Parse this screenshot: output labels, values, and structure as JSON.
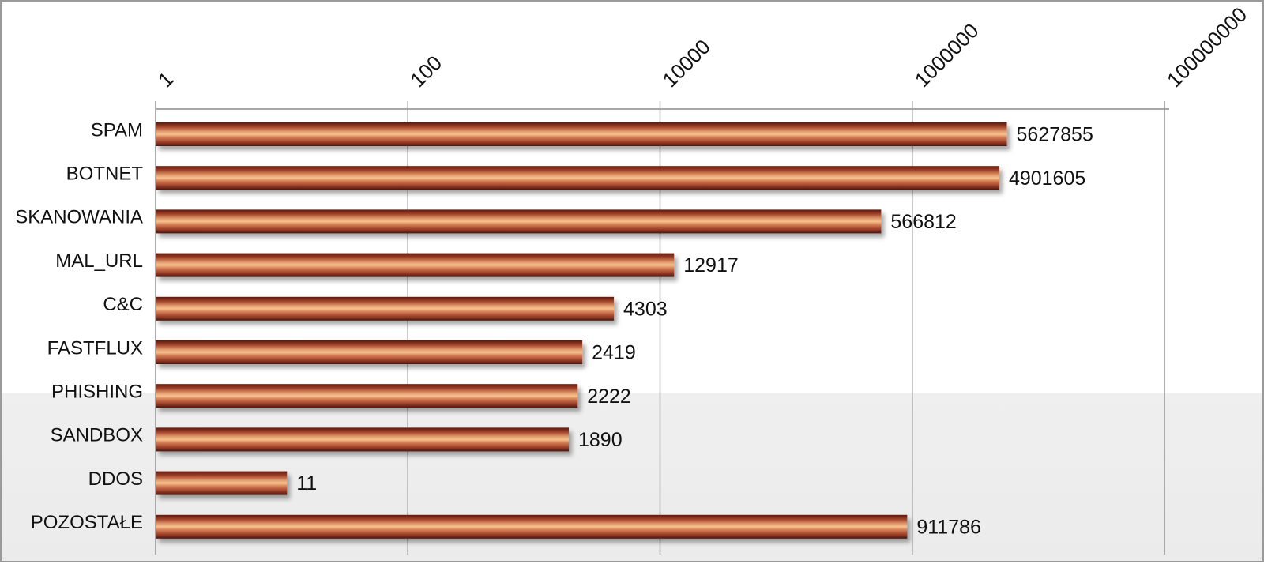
{
  "chart_data": {
    "type": "bar",
    "orientation": "horizontal",
    "scale": "log",
    "xlim": [
      1,
      100000000
    ],
    "x_ticks": [
      "1",
      "100",
      "10000",
      "1000000",
      "100000000"
    ],
    "x_tick_values": [
      1,
      100,
      10000,
      1000000,
      100000000
    ],
    "x_axis_position": "top",
    "grid": true,
    "categories": [
      "SPAM",
      "BOTNET",
      "SKANOWANIA",
      "MAL_URL",
      "C&C",
      "FASTFLUX",
      "PHISHING",
      "SANDBOX",
      "DDOS",
      "POZOSTAŁE"
    ],
    "values": [
      5627855,
      4901605,
      566812,
      12917,
      4303,
      2419,
      2222,
      1890,
      11,
      911786
    ],
    "value_labels": [
      "5627855",
      "4901605",
      "566812",
      "12917",
      "4303",
      "2419",
      "2222",
      "1890",
      "11",
      "911786"
    ],
    "bar_color": "#a0412a",
    "bar_highlight_color": "#f2b07a"
  }
}
